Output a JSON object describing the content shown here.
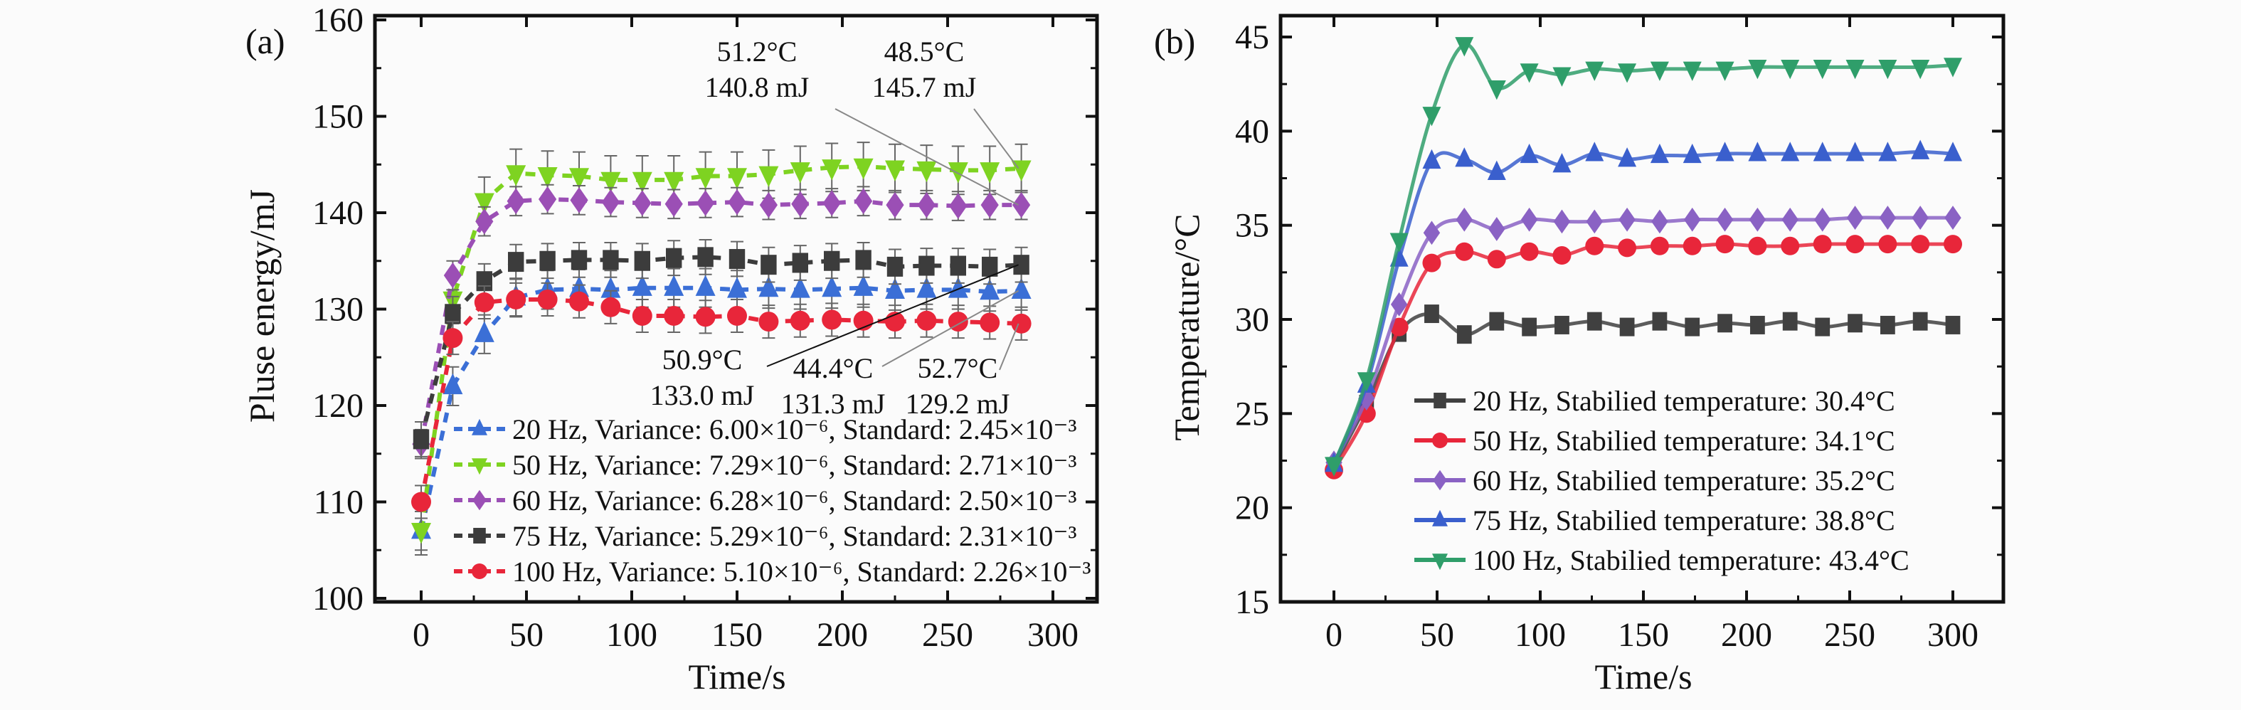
{
  "chart_data": [
    {
      "type": "line",
      "panel_label": "(a)",
      "xlabel": "Time/s",
      "ylabel": "Pluse energy/mJ",
      "xlim": [
        -25,
        325
      ],
      "ylim": [
        100,
        160
      ],
      "xticks": [
        "0",
        "50",
        "100",
        "150",
        "200",
        "250",
        "300"
      ],
      "yticks": [
        "100",
        "110",
        "120",
        "130",
        "140",
        "150",
        "160"
      ],
      "grid": false,
      "legend_position": "bottom-left",
      "line_style": "dashed",
      "error_bars": true,
      "x": [
        0,
        15,
        30,
        45,
        60,
        75,
        90,
        105,
        120,
        135,
        150,
        165,
        180,
        195,
        210,
        225,
        240,
        255,
        270,
        285
      ],
      "series": [
        {
          "name": "20 Hz, Variance: 6.00×10⁻⁶, Standard: 2.45×10⁻³",
          "marker": "triangle-up",
          "color": "#3b6fd6",
          "values": [
            107,
            122,
            127.4,
            131.2,
            132.0,
            132.1,
            132.0,
            132.2,
            132.2,
            132.2,
            132.0,
            132.1,
            132.0,
            132.1,
            132.2,
            131.9,
            132.0,
            132.0,
            131.8,
            131.9
          ],
          "error": 2.0
        },
        {
          "name": "50 Hz, Variance: 7.29×10⁻⁶, Standard: 2.71×10⁻³",
          "marker": "triangle-down",
          "color": "#7ed321",
          "values": [
            107,
            131,
            141.2,
            144.1,
            143.9,
            143.8,
            143.4,
            143.4,
            143.4,
            143.8,
            143.8,
            144.0,
            144.4,
            144.7,
            144.8,
            144.6,
            144.5,
            144.4,
            144.4,
            144.6
          ],
          "error": 2.5
        },
        {
          "name": "60 Hz, Variance: 6.28×10⁻⁶, Standard: 2.50×10⁻³",
          "marker": "diamond",
          "color": "#9b4fb5",
          "values": [
            116,
            133.5,
            139.1,
            141.2,
            141.4,
            141.3,
            141.1,
            141.0,
            140.9,
            141.0,
            141.1,
            140.8,
            140.9,
            141.0,
            141.2,
            140.8,
            140.8,
            140.7,
            140.8,
            140.8
          ],
          "error": 1.5
        },
        {
          "name": "75 Hz, Variance: 5.29×10⁻⁶, Standard: 2.31×10⁻³",
          "marker": "square",
          "color": "#3c3c3c",
          "values": [
            116.5,
            129.5,
            132.9,
            134.9,
            135.0,
            135.1,
            135.1,
            135.0,
            135.3,
            135.4,
            135.2,
            134.6,
            134.8,
            135.0,
            135.1,
            134.4,
            134.5,
            134.5,
            134.4,
            134.6
          ],
          "error": 1.8
        },
        {
          "name": "100 Hz, Variance: 5.10×10⁻⁶, Standard: 2.26×10⁻³",
          "marker": "circle",
          "color": "#e8263a",
          "values": [
            110,
            127,
            130.7,
            131.0,
            131.0,
            130.8,
            130.2,
            129.3,
            129.3,
            129.2,
            129.3,
            128.7,
            128.8,
            128.9,
            128.8,
            128.7,
            128.8,
            128.7,
            128.6,
            128.5
          ],
          "error": 1.7
        }
      ],
      "annotations": [
        {
          "temp": "51.2°C",
          "energy": "140.8 mJ",
          "series": 2
        },
        {
          "temp": "48.5°C",
          "energy": "145.7 mJ",
          "series": 1
        },
        {
          "temp": "50.9°C",
          "energy": "133.0 mJ",
          "series": 3
        },
        {
          "temp": "44.4°C",
          "energy": "131.3 mJ",
          "series": 0
        },
        {
          "temp": "52.7°C",
          "energy": "129.2 mJ",
          "series": 4
        }
      ]
    },
    {
      "type": "line",
      "panel_label": "(b)",
      "xlabel": "Time/s",
      "ylabel": "Temperature/°C",
      "xlim": [
        -25,
        325
      ],
      "ylim": [
        15,
        46
      ],
      "xticks": [
        "0",
        "50",
        "100",
        "150",
        "200",
        "250",
        "300"
      ],
      "yticks": [
        "15",
        "20",
        "25",
        "30",
        "35",
        "40",
        "45"
      ],
      "grid": false,
      "legend_position": "bottom-right",
      "line_style": "smooth",
      "x": [
        0,
        15.8,
        31.6,
        47.4,
        63.2,
        78.9,
        94.7,
        110.5,
        126.3,
        142.1,
        157.9,
        173.7,
        189.5,
        205.3,
        221.1,
        236.8,
        252.6,
        268.4,
        284.2,
        300
      ],
      "series": [
        {
          "name": "20 Hz, Stabilied temperature: 30.4°C",
          "marker": "square",
          "color": "#404040",
          "values": [
            22.2,
            25.5,
            29.3,
            30.3,
            29.2,
            29.9,
            29.6,
            29.7,
            29.9,
            29.6,
            29.9,
            29.6,
            29.8,
            29.7,
            29.9,
            29.6,
            29.8,
            29.7,
            29.9,
            29.7
          ]
        },
        {
          "name": "50 Hz, Stabilied temperature: 34.1°C",
          "marker": "circle",
          "color": "#e8263a",
          "values": [
            22.0,
            25.0,
            29.6,
            33.0,
            33.6,
            33.2,
            33.6,
            33.4,
            33.9,
            33.8,
            33.9,
            33.9,
            34.0,
            33.9,
            33.9,
            34.0,
            34.0,
            34.0,
            34.0,
            34.0
          ]
        },
        {
          "name": "60 Hz, Stabilied temperature: 35.2°C",
          "marker": "diamond",
          "color": "#8a62c4",
          "values": [
            22.4,
            25.8,
            30.8,
            34.6,
            35.3,
            34.8,
            35.3,
            35.2,
            35.2,
            35.3,
            35.2,
            35.3,
            35.3,
            35.3,
            35.3,
            35.3,
            35.4,
            35.4,
            35.4,
            35.4
          ]
        },
        {
          "name": "75 Hz, Stabilied temperature: 38.8°C",
          "marker": "triangle-up",
          "color": "#3a5fcd",
          "values": [
            22.3,
            26.5,
            33.2,
            38.4,
            38.5,
            37.8,
            38.7,
            38.2,
            38.8,
            38.5,
            38.7,
            38.7,
            38.8,
            38.8,
            38.8,
            38.8,
            38.8,
            38.8,
            38.9,
            38.8
          ]
        },
        {
          "name": "100 Hz, Stabilied temperature: 43.4°C",
          "marker": "triangle-down",
          "color": "#2f9e6a",
          "values": [
            22.3,
            26.8,
            34.2,
            40.9,
            44.6,
            42.3,
            43.2,
            43.0,
            43.3,
            43.2,
            43.3,
            43.3,
            43.3,
            43.4,
            43.4,
            43.4,
            43.4,
            43.4,
            43.4,
            43.5
          ]
        }
      ]
    }
  ]
}
